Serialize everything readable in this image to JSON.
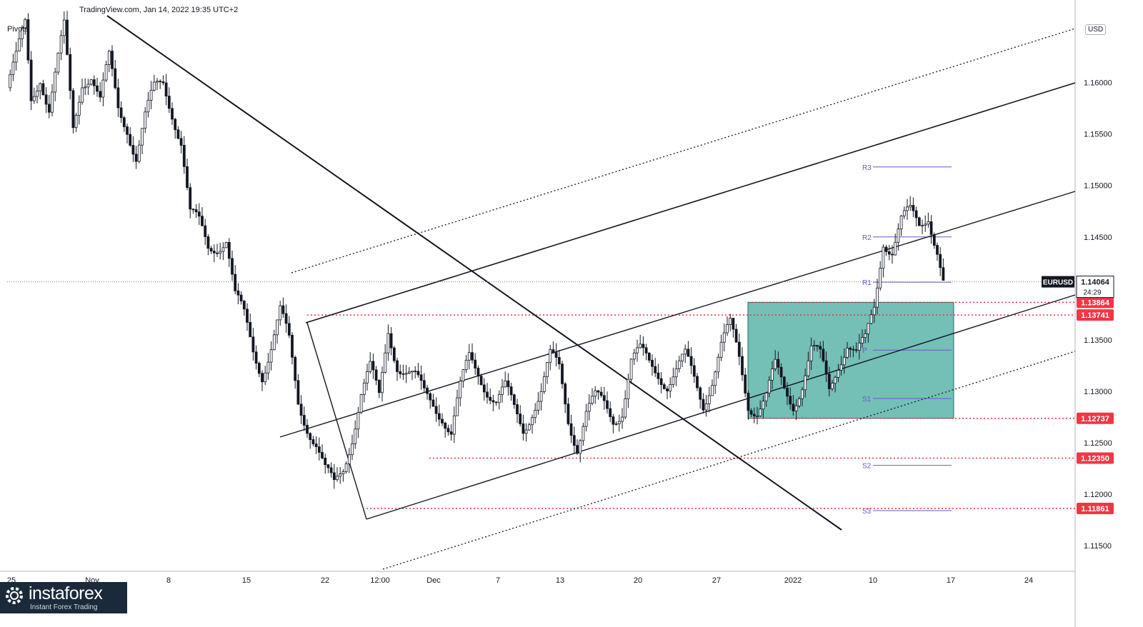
{
  "header": {
    "title": "TradingView.com, Jan 14, 2022 19:35 UTC+2",
    "indicator": "Pivots",
    "currency": "USD"
  },
  "brand": {
    "name": "instaforex",
    "tagline": "Instant Forex Trading"
  },
  "chart_data": {
    "type": "candlestick",
    "symbol": "EURUSD",
    "last_price": "1.14064",
    "countdown": "24:29",
    "y_axis": {
      "ticks": [
        "1.16000",
        "1.15500",
        "1.15000",
        "1.14500",
        "1.13500",
        "1.13000",
        "1.12500",
        "1.12000",
        "1.11500"
      ],
      "range": [
        1.1125,
        1.1665
      ]
    },
    "x_axis": {
      "ticks": [
        "25",
        "Nov",
        "8",
        "15",
        "22",
        "12:00",
        "Dec",
        "7",
        "13",
        "20",
        "27",
        "2022",
        "10",
        "17",
        "24"
      ]
    },
    "price_labels": [
      {
        "value": "1.13864",
        "price": 1.13864,
        "color": "#f23645"
      },
      {
        "value": "1.13741",
        "price": 1.13741,
        "color": "#f23645"
      },
      {
        "value": "1.12737",
        "price": 1.12737,
        "color": "#f23645"
      },
      {
        "value": "1.12350",
        "price": 1.1235,
        "color": "#f23645"
      },
      {
        "value": "1.11861",
        "price": 1.11861,
        "color": "#f23645"
      }
    ],
    "pivots": [
      {
        "label": "R3",
        "price": 1.1518
      },
      {
        "label": "R2",
        "price": 1.145
      },
      {
        "label": "R1",
        "price": 1.1406
      },
      {
        "label": "P",
        "price": 1.134
      },
      {
        "label": "S1",
        "price": 1.1293
      },
      {
        "label": "S2",
        "price": 1.1228
      },
      {
        "label": "S3",
        "price": 1.1184
      }
    ],
    "rectangle": {
      "price_top": 1.13864,
      "price_bottom": 1.12737,
      "color": "#2a9d8f"
    },
    "price_path": [
      [
        0,
        1.1595
      ],
      [
        3,
        1.162
      ],
      [
        6,
        1.1655
      ],
      [
        8,
        1.1585
      ],
      [
        11,
        1.161
      ],
      [
        14,
        1.1575
      ],
      [
        17,
        1.162
      ],
      [
        19,
        1.165
      ],
      [
        22,
        1.1555
      ],
      [
        25,
        1.1605
      ],
      [
        28,
        1.161
      ],
      [
        31,
        1.158
      ],
      [
        34,
        1.162
      ],
      [
        37,
        1.1575
      ],
      [
        40,
        1.156
      ],
      [
        43,
        1.153
      ],
      [
        46,
        1.1565
      ],
      [
        49,
        1.159
      ],
      [
        52,
        1.16
      ],
      [
        55,
        1.1575
      ],
      [
        58,
        1.1545
      ],
      [
        61,
        1.147
      ],
      [
        64,
        1.146
      ],
      [
        67,
        1.144
      ],
      [
        70,
        1.1445
      ],
      [
        73,
        1.145
      ],
      [
        76,
        1.139
      ],
      [
        79,
        1.137
      ],
      [
        82,
        1.134
      ],
      [
        85,
        1.132
      ],
      [
        88,
        1.1345
      ],
      [
        91,
        1.1375
      ],
      [
        94,
        1.1345
      ],
      [
        97,
        1.129
      ],
      [
        100,
        1.127
      ],
      [
        103,
        1.125
      ],
      [
        106,
        1.122
      ],
      [
        109,
        1.1205
      ],
      [
        112,
        1.1225
      ],
      [
        115,
        1.126
      ],
      [
        118,
        1.13
      ],
      [
        121,
        1.132
      ],
      [
        124,
        1.129
      ],
      [
        127,
        1.136
      ],
      [
        130,
        1.133
      ],
      [
        133,
        1.132
      ],
      [
        136,
        1.131
      ],
      [
        139,
        1.1295
      ],
      [
        142,
        1.129
      ],
      [
        145,
        1.128
      ],
      [
        148,
        1.126
      ],
      [
        151,
        1.13
      ],
      [
        154,
        1.133
      ],
      [
        157,
        1.132
      ],
      [
        160,
        1.1305
      ],
      [
        163,
        1.129
      ],
      [
        166,
        1.13
      ],
      [
        169,
        1.128
      ],
      [
        172,
        1.1265
      ],
      [
        175,
        1.1285
      ],
      [
        178,
        1.13
      ],
      [
        181,
        1.133
      ],
      [
        184,
        1.132
      ],
      [
        187,
        1.1275
      ],
      [
        190,
        1.125
      ],
      [
        193,
        1.128
      ],
      [
        196,
        1.129
      ],
      [
        199,
        1.1285
      ],
      [
        202,
        1.1275
      ],
      [
        205,
        1.1285
      ],
      [
        208,
        1.133
      ],
      [
        211,
        1.1335
      ],
      [
        214,
        1.1325
      ],
      [
        217,
        1.132
      ],
      [
        220,
        1.131
      ],
      [
        223,
        1.132
      ],
      [
        226,
        1.133
      ],
      [
        229,
        1.131
      ],
      [
        232,
        1.129
      ],
      [
        235,
        1.1315
      ],
      [
        238,
        1.1345
      ],
      [
        241,
        1.136
      ],
      [
        244,
        1.133
      ],
      [
        247,
        1.129
      ],
      [
        250,
        1.1285
      ],
      [
        253,
        1.1295
      ],
      [
        256,
        1.132
      ],
      [
        259,
        1.13
      ],
      [
        262,
        1.129
      ],
      [
        265,
        1.131
      ],
      [
        268,
        1.134
      ],
      [
        271,
        1.133
      ],
      [
        274,
        1.13
      ],
      [
        277,
        1.133
      ],
      [
        280,
        1.135
      ],
      [
        283,
        1.1335
      ],
      [
        286,
        1.1345
      ],
      [
        289,
        1.138
      ],
      [
        292,
        1.145
      ],
      [
        295,
        1.144
      ],
      [
        298,
        1.1465
      ],
      [
        301,
        1.147
      ],
      [
        304,
        1.146
      ],
      [
        307,
        1.1475
      ],
      [
        310,
        1.144
      ],
      [
        312,
        1.1406
      ]
    ]
  }
}
